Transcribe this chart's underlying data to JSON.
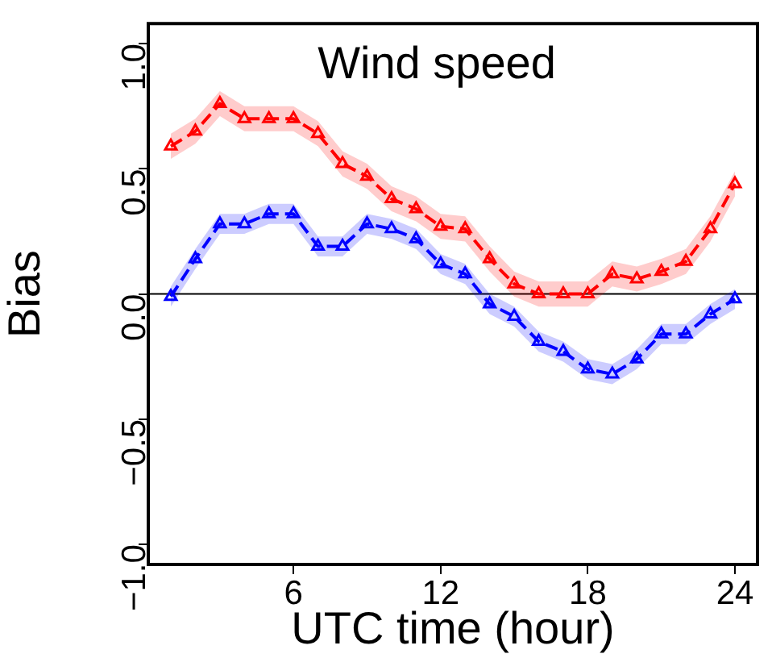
{
  "chart_data": {
    "type": "line",
    "title": "Wind speed",
    "xlabel": "UTC time (hour)",
    "ylabel": "Bias",
    "x": [
      1,
      2,
      3,
      4,
      5,
      6,
      7,
      8,
      9,
      10,
      11,
      12,
      13,
      14,
      15,
      16,
      17,
      18,
      19,
      20,
      21,
      22,
      23,
      24
    ],
    "series": [
      {
        "color": "#ff0000",
        "values": [
          0.59,
          0.65,
          0.76,
          0.7,
          0.7,
          0.7,
          0.64,
          0.52,
          0.47,
          0.38,
          0.34,
          0.27,
          0.26,
          0.14,
          0.04,
          0.0,
          0.0,
          0.0,
          0.08,
          0.06,
          0.09,
          0.13,
          0.26,
          0.44
        ],
        "lower": [
          0.54,
          0.6,
          0.71,
          0.65,
          0.65,
          0.65,
          0.59,
          0.47,
          0.42,
          0.33,
          0.29,
          0.22,
          0.21,
          0.09,
          -0.01,
          -0.05,
          -0.05,
          -0.05,
          0.03,
          0.01,
          0.04,
          0.08,
          0.21,
          0.39
        ],
        "upper": [
          0.64,
          0.7,
          0.81,
          0.75,
          0.75,
          0.75,
          0.69,
          0.57,
          0.52,
          0.43,
          0.39,
          0.32,
          0.31,
          0.19,
          0.09,
          0.05,
          0.05,
          0.05,
          0.13,
          0.11,
          0.14,
          0.18,
          0.31,
          0.49
        ]
      },
      {
        "color": "#0000ff",
        "values": [
          -0.01,
          0.14,
          0.28,
          0.28,
          0.32,
          0.32,
          0.19,
          0.19,
          0.28,
          0.26,
          0.22,
          0.12,
          0.08,
          -0.04,
          -0.09,
          -0.19,
          -0.23,
          -0.3,
          -0.32,
          -0.26,
          -0.16,
          -0.16,
          -0.08,
          -0.02
        ],
        "lower": [
          -0.05,
          0.1,
          0.24,
          0.24,
          0.28,
          0.28,
          0.15,
          0.15,
          0.24,
          0.22,
          0.18,
          0.08,
          0.04,
          -0.08,
          -0.13,
          -0.23,
          -0.27,
          -0.34,
          -0.36,
          -0.3,
          -0.2,
          -0.2,
          -0.12,
          -0.06
        ],
        "upper": [
          0.03,
          0.18,
          0.32,
          0.32,
          0.36,
          0.36,
          0.23,
          0.23,
          0.32,
          0.3,
          0.26,
          0.16,
          0.12,
          0.0,
          -0.05,
          -0.15,
          -0.19,
          -0.26,
          -0.28,
          -0.22,
          -0.12,
          -0.12,
          -0.04,
          0.02
        ]
      }
    ],
    "xlim": [
      0.08,
      24.92
    ],
    "xticks": [
      6,
      12,
      18,
      24
    ],
    "ylim": [
      -1.08,
      1.08
    ],
    "yticks": [
      {
        "value": -1,
        "label": "−1.0"
      },
      {
        "value": -0.5,
        "label": "−0.5"
      },
      {
        "value": 0,
        "label": "0.0"
      },
      {
        "value": 0.5,
        "label": "0.5"
      },
      {
        "value": 1,
        "label": "1.0"
      }
    ],
    "ref_lines": [
      {
        "axis": "y",
        "value": 0,
        "color": "#000000"
      }
    ],
    "grid": false,
    "legend": false,
    "marker": "triangle",
    "line_style": "dashed"
  }
}
